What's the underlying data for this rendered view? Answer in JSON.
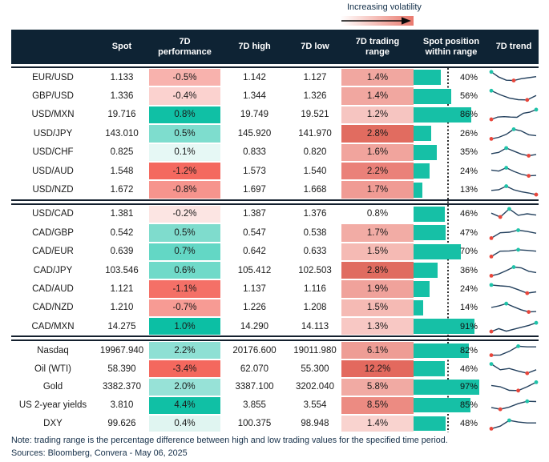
{
  "legend": {
    "label": "Increasing volatility"
  },
  "columns": {
    "asset": "",
    "spot": "Spot",
    "performance": "7D performance",
    "high": "7D high",
    "low": "7D low",
    "range": "7D trading range",
    "position": "Spot position within range",
    "trend": "7D trend"
  },
  "colors": {
    "header_bg": "#0e2334",
    "position_bar": "#16c0a6",
    "spark_line": "#24415e",
    "spark_dot_max": "#1fc3a9",
    "spark_dot_min": "#e8463b",
    "rule": "#14202e",
    "legend_gradient_end": "#e9786d"
  },
  "chart_data": {
    "type": "table",
    "legend": "Increasing volatility",
    "columns": [
      "",
      "Spot",
      "7D performance",
      "7D high",
      "7D low",
      "7D trading range",
      "Spot position within range",
      "7D trend"
    ],
    "blocks": [
      {
        "rows": [
          {
            "label": "EUR/USD",
            "spot": "1.133",
            "perf": "-0.5%",
            "perf_bg": "#f8b2ad",
            "high": "1.142",
            "low": "1.127",
            "range": "1.4%",
            "range_bg": "#f1a7a0",
            "position_pct": 40,
            "position_label": "40%",
            "trend": [
              0.95,
              0.55,
              0.3,
              0.28,
              0.42,
              0.5,
              0.58
            ]
          },
          {
            "label": "GBP/USD",
            "spot": "1.336",
            "perf": "-0.4%",
            "perf_bg": "#fbd2cf",
            "high": "1.344",
            "low": "1.326",
            "range": "1.4%",
            "range_bg": "#f1a7a0",
            "position_pct": 56,
            "position_label": "56%",
            "trend": [
              0.92,
              0.6,
              0.35,
              0.22,
              0.2,
              0.55
            ]
          },
          {
            "label": "USD/MXN",
            "spot": "19.716",
            "perf": "0.8%",
            "perf_bg": "#10c0a5",
            "high": "19.749",
            "low": "19.521",
            "range": "1.2%",
            "range_bg": "#f6c5c1",
            "position_pct": 86,
            "position_label": "86%",
            "trend": [
              0.12,
              0.3,
              0.33,
              0.3,
              0.28,
              0.6,
              0.68,
              0.88
            ]
          },
          {
            "label": "USD/JPY",
            "spot": "143.010",
            "perf": "0.5%",
            "perf_bg": "#7eddce",
            "high": "145.920",
            "low": "141.970",
            "range": "2.8%",
            "range_bg": "#e16c60",
            "position_pct": 26,
            "position_label": "26%",
            "trend": [
              0.1,
              0.22,
              0.45,
              0.85,
              0.72,
              0.42,
              0.35
            ]
          },
          {
            "label": "USD/CHF",
            "spot": "0.825",
            "perf": "0.1%",
            "perf_bg": "#e6f8f5",
            "high": "0.833",
            "low": "0.820",
            "range": "1.6%",
            "range_bg": "#f1a49d",
            "position_pct": 35,
            "position_label": "35%",
            "trend": [
              0.38,
              0.48,
              0.82,
              0.58,
              0.35,
              0.22,
              0.32
            ]
          },
          {
            "label": "USD/AUD",
            "spot": "1.548",
            "perf": "-1.2%",
            "perf_bg": "#f4695f",
            "high": "1.573",
            "low": "1.540",
            "range": "2.2%",
            "range_bg": "#ea8179",
            "position_pct": 24,
            "position_label": "24%",
            "trend": [
              0.6,
              0.52,
              0.78,
              0.5,
              0.28,
              0.15,
              0.18
            ]
          },
          {
            "label": "USD/NZD",
            "spot": "1.672",
            "perf": "-0.8%",
            "perf_bg": "#f6948d",
            "high": "1.697",
            "low": "1.668",
            "range": "1.7%",
            "range_bg": "#f09b94",
            "position_pct": 13,
            "position_label": "13%",
            "trend": [
              0.45,
              0.5,
              0.78,
              0.5,
              0.35,
              0.25,
              0.12
            ]
          }
        ]
      },
      {
        "rows": [
          {
            "label": "USD/CAD",
            "spot": "1.381",
            "perf": "-0.2%",
            "perf_bg": "#fce5e3",
            "high": "1.387",
            "low": "1.376",
            "range": "0.8%",
            "range_bg": "#ffffff",
            "position_pct": 46,
            "position_label": "46%",
            "trend": [
              0.55,
              0.25,
              0.88,
              0.38,
              0.5,
              0.4
            ]
          },
          {
            "label": "CAD/GBP",
            "spot": "0.542",
            "perf": "0.5%",
            "perf_bg": "#7fdccd",
            "high": "0.547",
            "low": "0.538",
            "range": "1.7%",
            "range_bg": "#f2aca5",
            "position_pct": 47,
            "position_label": "47%",
            "trend": [
              0.1,
              0.52,
              0.56,
              0.72,
              0.62,
              0.48
            ]
          },
          {
            "label": "CAD/EUR",
            "spot": "0.639",
            "perf": "0.7%",
            "perf_bg": "#63d7c5",
            "high": "0.642",
            "low": "0.633",
            "range": "1.5%",
            "range_bg": "#f5bab4",
            "position_pct": 70,
            "position_label": "70%",
            "trend": [
              0.1,
              0.52,
              0.54,
              0.63,
              0.58,
              0.52
            ]
          },
          {
            "label": "CAD/JPY",
            "spot": "103.546",
            "perf": "0.6%",
            "perf_bg": "#70dac9",
            "high": "105.412",
            "low": "102.503",
            "range": "2.8%",
            "range_bg": "#e06c60",
            "position_pct": 36,
            "position_label": "36%",
            "trend": [
              0.1,
              0.24,
              0.5,
              0.78,
              0.72,
              0.45,
              0.35
            ]
          },
          {
            "label": "CAD/AUD",
            "spot": "1.121",
            "perf": "-1.1%",
            "perf_bg": "#f47067",
            "high": "1.137",
            "low": "1.116",
            "range": "1.9%",
            "range_bg": "#f0a29b",
            "position_pct": 24,
            "position_label": "24%",
            "trend": [
              0.82,
              0.75,
              0.7,
              0.45,
              0.18,
              0.28
            ]
          },
          {
            "label": "CAD/NZD",
            "spot": "1.210",
            "perf": "-0.7%",
            "perf_bg": "#f79b94",
            "high": "1.226",
            "low": "1.208",
            "range": "1.5%",
            "range_bg": "#f5bab4",
            "position_pct": 14,
            "position_label": "14%",
            "trend": [
              0.5,
              0.62,
              0.8,
              0.55,
              0.32,
              0.15,
              0.18
            ]
          },
          {
            "label": "CAD/MXN",
            "spot": "14.275",
            "perf": "1.0%",
            "perf_bg": "#0cbfa4",
            "high": "14.290",
            "low": "14.113",
            "range": "1.3%",
            "range_bg": "#f8c8c4",
            "position_pct": 91,
            "position_label": "91%",
            "trend": [
              0.12,
              0.35,
              0.15,
              0.3,
              0.45,
              0.6,
              0.8
            ]
          }
        ]
      },
      {
        "rows": [
          {
            "label": "Nasdaq",
            "spot": "19967.940",
            "perf": "2.2%",
            "perf_bg": "#8ee0d4",
            "high": "20176.600",
            "low": "19011.980",
            "range": "6.1%",
            "range_bg": "#ee9d95",
            "position_pct": 82,
            "position_label": "82%",
            "trend": [
              0.15,
              0.16,
              0.45,
              0.85,
              0.8,
              0.8
            ]
          },
          {
            "label": "Oil (WTI)",
            "spot": "58.390",
            "perf": "-3.4%",
            "perf_bg": "#f4685e",
            "high": "62.070",
            "low": "55.300",
            "range": "12.2%",
            "range_bg": "#e3695e",
            "position_pct": 46,
            "position_label": "46%",
            "trend": [
              0.9,
              0.45,
              0.55,
              0.35,
              0.18,
              0.45
            ]
          },
          {
            "label": "Gold",
            "spot": "3382.370",
            "perf": "2.0%",
            "perf_bg": "#97e2d7",
            "high": "3387.100",
            "low": "3202.040",
            "range": "5.8%",
            "range_bg": "#f1aaa3",
            "position_pct": 97,
            "position_label": "97%",
            "trend": [
              0.6,
              0.5,
              0.22,
              0.2,
              0.5,
              0.85
            ]
          },
          {
            "label": "US 2-year yields",
            "spot": "3.810",
            "perf": "4.4%",
            "perf_bg": "#10c0a5",
            "high": "3.855",
            "low": "3.554",
            "range": "8.5%",
            "range_bg": "#ec8b82",
            "position_pct": 85,
            "position_label": "85%",
            "trend": [
              0.32,
              0.18,
              0.35,
              0.62,
              0.8,
              0.78
            ]
          },
          {
            "label": "DXY",
            "spot": "99.626",
            "perf": "0.4%",
            "perf_bg": "#e0f5f1",
            "high": "100.375",
            "low": "98.948",
            "range": "1.4%",
            "range_bg": "#f9d3cf",
            "position_pct": 48,
            "position_label": "48%",
            "trend": [
              0.1,
              0.3,
              0.75,
              0.62,
              0.55,
              0.55
            ]
          }
        ]
      }
    ]
  },
  "footer": {
    "note": "Note: trading range is the percentage difference between high and low trading values for the specified time period.",
    "sources": "Sources: Bloomberg, Convera - May 06, 2025"
  }
}
